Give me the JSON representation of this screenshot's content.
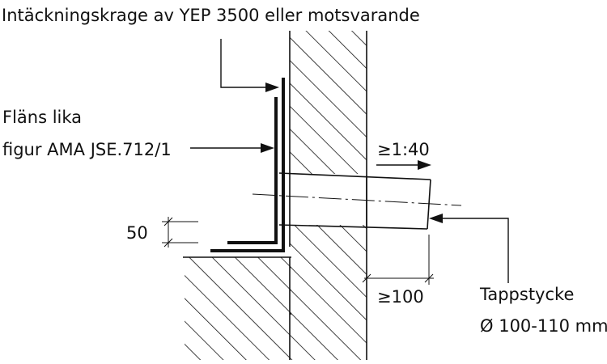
{
  "labels": {
    "top_callout": "Intäckningskrage av YEP 3500 eller motsvarande",
    "flange_line1": "Fläns lika",
    "flange_line2": "figur AMA JSE.712/1",
    "slope": "≥1:40",
    "height_dim": "50",
    "protrusion_dim": "≥100",
    "pipe_line1": "Tappstycke",
    "pipe_line2": "Ø 100-110 mm"
  },
  "colors": {
    "ink": "#111111",
    "background": "#ffffff"
  }
}
